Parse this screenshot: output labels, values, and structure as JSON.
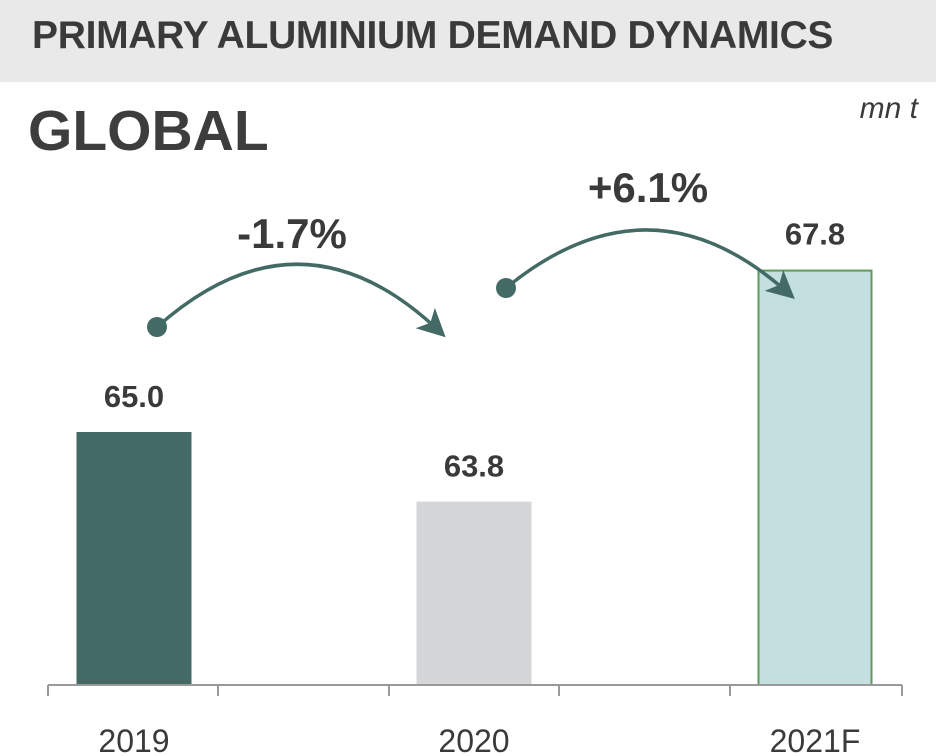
{
  "header": {
    "title": "PRIMARY ALUMINIUM DEMAND DYNAMICS"
  },
  "region": {
    "title": "GLOBAL"
  },
  "unit": "mn t",
  "chart_data": {
    "type": "bar",
    "categories": [
      "2019",
      "2020",
      "2021F"
    ],
    "values": [
      65.0,
      63.8,
      67.8
    ],
    "value_labels": [
      "65.0",
      "63.8",
      "67.8"
    ],
    "bar_colors": [
      "#436a65",
      "#d5d6d8",
      "#c4dfdf"
    ],
    "bar_border_colors": [
      "#436a65",
      "#d5d6d8",
      "#5f9a5a"
    ],
    "arrow_color": "#436a65",
    "changes": [
      {
        "from": "2019",
        "to": "2020",
        "label": "-1.7%"
      },
      {
        "from": "2020",
        "to": "2021F",
        "label": "+6.1%"
      }
    ],
    "title": "GLOBAL",
    "ylabel": "mn t",
    "grid": false,
    "legend": "none"
  }
}
